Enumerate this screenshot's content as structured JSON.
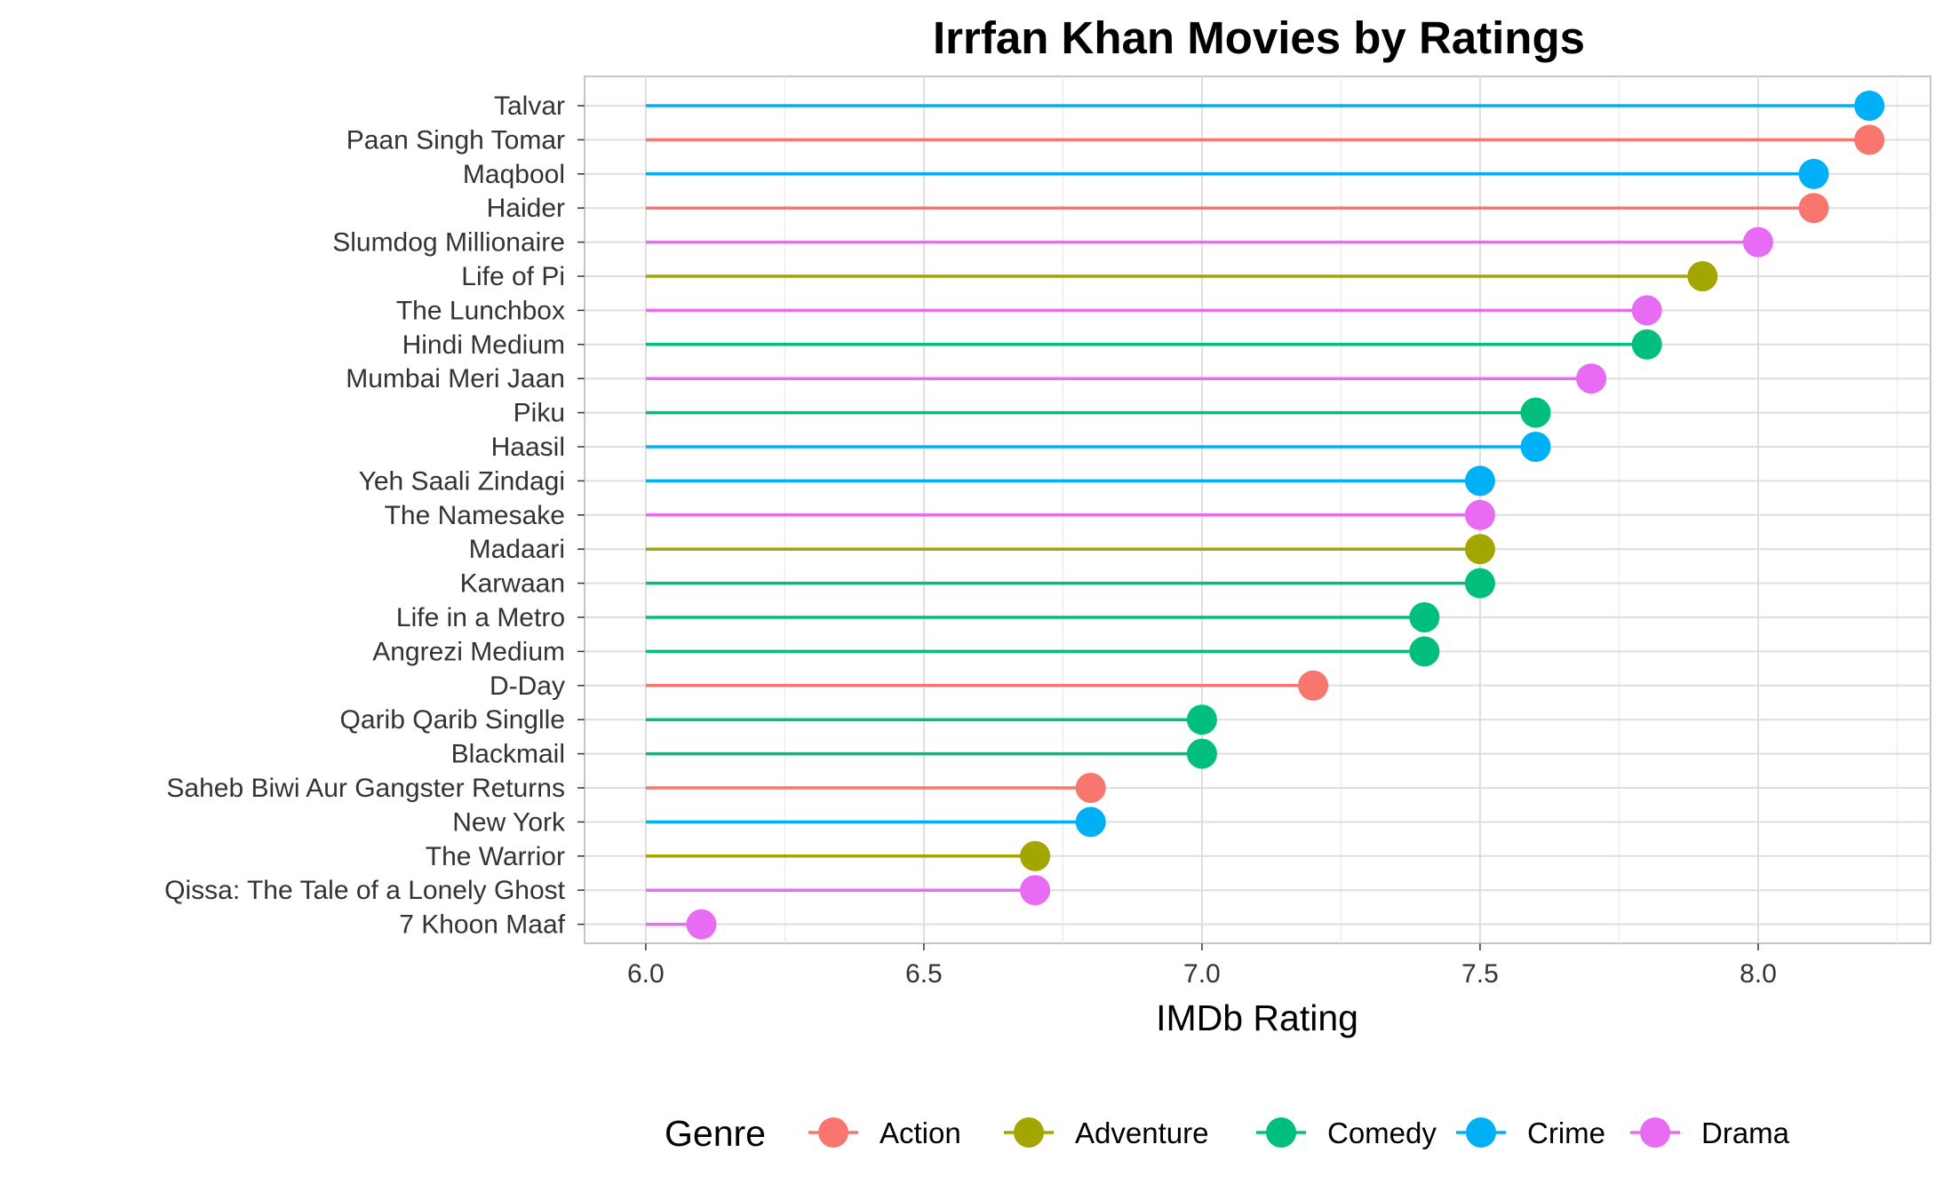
{
  "chart_data": {
    "type": "lollipop",
    "title": "Irrfan Khan Movies by Ratings",
    "xlabel": "IMDb Rating",
    "ylabel": "",
    "xlim": [
      5.89,
      8.31
    ],
    "xticks": [
      6.0,
      6.5,
      7.0,
      7.5,
      8.0
    ],
    "xtick_labels": [
      "6.0",
      "6.5",
      "7.0",
      "7.5",
      "8.0"
    ],
    "baseline": 6.0,
    "grid": true,
    "legend": {
      "title": "Genre",
      "position": "bottom",
      "entries": [
        {
          "name": "Action",
          "color": "#F8766D"
        },
        {
          "name": "Adventure",
          "color": "#A3A500"
        },
        {
          "name": "Comedy",
          "color": "#00BF7D"
        },
        {
          "name": "Crime",
          "color": "#00B0F6"
        },
        {
          "name": "Drama",
          "color": "#E76BF3"
        }
      ]
    },
    "movies": [
      {
        "title": "Talvar",
        "rating": 8.2,
        "genre": "Crime"
      },
      {
        "title": "Paan Singh Tomar",
        "rating": 8.2,
        "genre": "Action"
      },
      {
        "title": "Maqbool",
        "rating": 8.1,
        "genre": "Crime"
      },
      {
        "title": "Haider",
        "rating": 8.1,
        "genre": "Action"
      },
      {
        "title": "Slumdog Millionaire",
        "rating": 8.0,
        "genre": "Drama"
      },
      {
        "title": "Life of Pi",
        "rating": 7.9,
        "genre": "Adventure"
      },
      {
        "title": "The Lunchbox",
        "rating": 7.8,
        "genre": "Drama"
      },
      {
        "title": "Hindi Medium",
        "rating": 7.8,
        "genre": "Comedy"
      },
      {
        "title": "Mumbai Meri Jaan",
        "rating": 7.7,
        "genre": "Drama"
      },
      {
        "title": "Piku",
        "rating": 7.6,
        "genre": "Comedy"
      },
      {
        "title": "Haasil",
        "rating": 7.6,
        "genre": "Crime"
      },
      {
        "title": "Yeh Saali Zindagi",
        "rating": 7.5,
        "genre": "Crime"
      },
      {
        "title": "The Namesake",
        "rating": 7.5,
        "genre": "Drama"
      },
      {
        "title": "Madaari",
        "rating": 7.5,
        "genre": "Adventure"
      },
      {
        "title": "Karwaan",
        "rating": 7.5,
        "genre": "Comedy"
      },
      {
        "title": "Life in a Metro",
        "rating": 7.4,
        "genre": "Comedy"
      },
      {
        "title": "Angrezi Medium",
        "rating": 7.4,
        "genre": "Comedy"
      },
      {
        "title": "D-Day",
        "rating": 7.2,
        "genre": "Action"
      },
      {
        "title": "Qarib Qarib Singlle",
        "rating": 7.0,
        "genre": "Comedy"
      },
      {
        "title": "Blackmail",
        "rating": 7.0,
        "genre": "Comedy"
      },
      {
        "title": "Saheb Biwi Aur Gangster Returns",
        "rating": 6.8,
        "genre": "Action"
      },
      {
        "title": "New York",
        "rating": 6.8,
        "genre": "Crime"
      },
      {
        "title": "The Warrior",
        "rating": 6.7,
        "genre": "Adventure"
      },
      {
        "title": "Qissa: The Tale of a Lonely Ghost",
        "rating": 6.7,
        "genre": "Drama"
      },
      {
        "title": "7 Khoon Maaf",
        "rating": 6.1,
        "genre": "Drama"
      }
    ]
  }
}
